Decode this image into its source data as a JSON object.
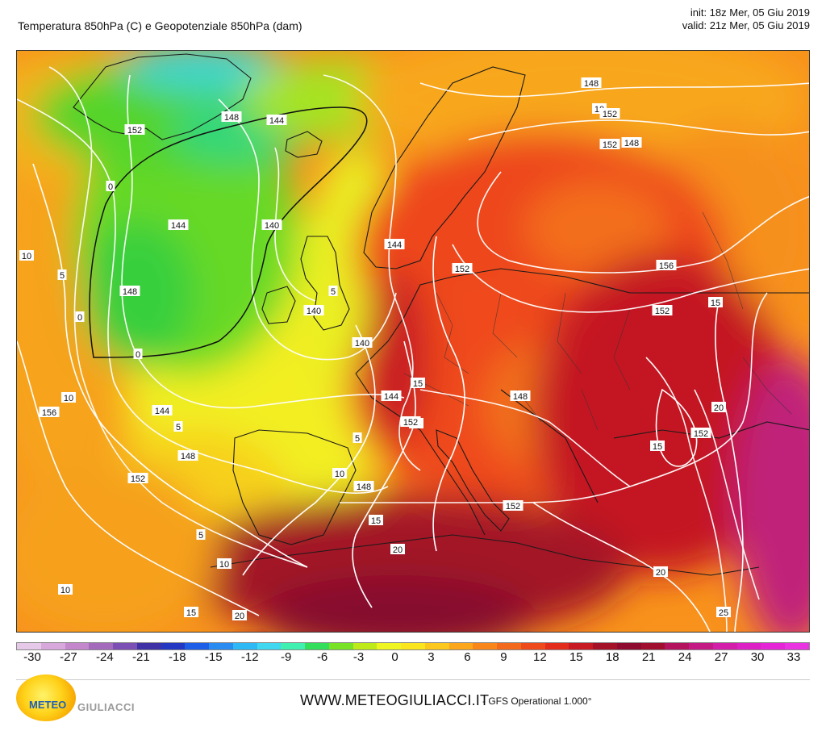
{
  "header": {
    "title": "Temperatura 850hPa (C) e Geopotenziale 850hPa (dam)",
    "init": "init: 18z Mer, 05 Giu 2019",
    "valid": "valid: 21z Mer, 05 Giu 2019"
  },
  "map": {
    "temperature_labels": [
      "0",
      "0",
      "0",
      "5",
      "5",
      "5",
      "5",
      "5",
      "10",
      "10",
      "10",
      "10",
      "10",
      "10",
      "15",
      "15",
      "15",
      "15",
      "15",
      "15",
      "20",
      "20",
      "20",
      "20",
      "25"
    ],
    "geopotential_labels": [
      "152",
      "148",
      "144",
      "144",
      "140",
      "140",
      "148",
      "152",
      "148",
      "156",
      "152",
      "152",
      "156",
      "152",
      "148",
      "144",
      "140",
      "144",
      "148",
      "152",
      "152",
      "148",
      "144",
      "152",
      "148",
      "152"
    ]
  },
  "colorbar": {
    "ticks": [
      "-30",
      "-27",
      "-24",
      "-21",
      "-18",
      "-15",
      "-12",
      "-9",
      "-6",
      "-3",
      "0",
      "3",
      "6",
      "9",
      "12",
      "15",
      "18",
      "21",
      "24",
      "27",
      "30",
      "33"
    ],
    "colors": [
      "#e6c8e8",
      "#d8a8dc",
      "#c487cc",
      "#a46bbd",
      "#7c4fb4",
      "#3f31a6",
      "#2438c2",
      "#1f5ee6",
      "#2a8cf0",
      "#2fb8f6",
      "#3fd8f0",
      "#3ff0b0",
      "#33de5a",
      "#78e227",
      "#bfea1a",
      "#eef521",
      "#fbe51f",
      "#fcc81d",
      "#fba61b",
      "#f8861a",
      "#f36a1c",
      "#ef4a1c",
      "#e42c1c",
      "#c81a22",
      "#a41228",
      "#8e0a2e",
      "#a0102e",
      "#b4135e",
      "#c41a84",
      "#d21ea8",
      "#dc22c4",
      "#e426d6",
      "#ea34e2"
    ]
  },
  "footer": {
    "site": "WWW.METEOGIULIACCI.IT",
    "model": "- GFS Operational 1.000°",
    "logo_part1": "METEO",
    "logo_part2": "GIULIACCI"
  }
}
